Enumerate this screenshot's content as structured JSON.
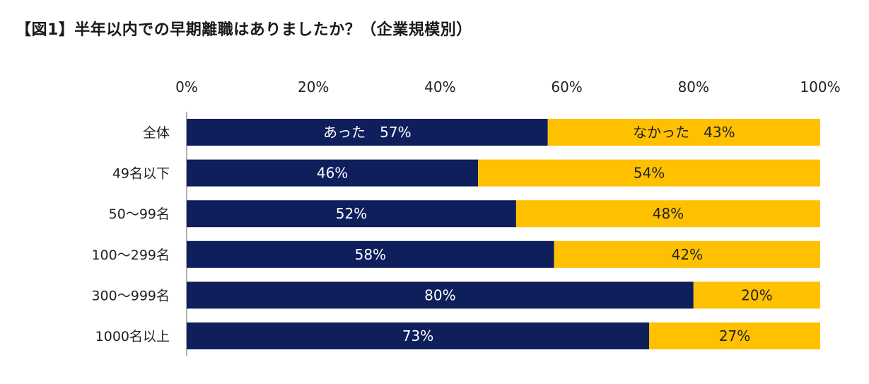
{
  "title": "【図1】半年以内での早期離職はありましたか？（企業規模別）",
  "chart_data": {
    "type": "bar",
    "orientation": "horizontal",
    "stacked": true,
    "stack_mode": "100%",
    "xlim": [
      0,
      100
    ],
    "x_ticks": [
      "0%",
      "20%",
      "40%",
      "60%",
      "80%",
      "100%"
    ],
    "categories": [
      "全体",
      "49名以下",
      "50～99名",
      "100～299名",
      "300～999名",
      "1000名以上"
    ],
    "series": [
      {
        "name": "あった",
        "color": "#0f1f5c",
        "values": [
          57,
          46,
          52,
          58,
          80,
          73
        ],
        "labels": [
          "あった　57%",
          "46%",
          "52%",
          "58%",
          "80%",
          "73%"
        ]
      },
      {
        "name": "なかった",
        "color": "#ffc000",
        "values": [
          43,
          54,
          48,
          42,
          20,
          27
        ],
        "labels": [
          "なかった　43%",
          "54%",
          "48%",
          "42%",
          "20%",
          "27%"
        ]
      }
    ],
    "grid": false,
    "legend": "none"
  }
}
